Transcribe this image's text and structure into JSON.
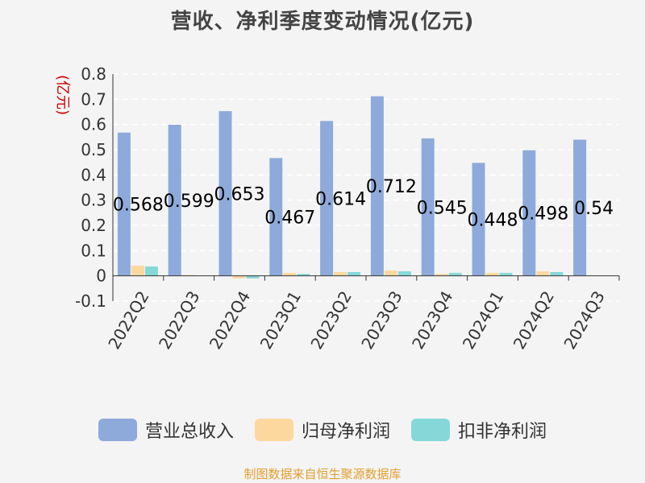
{
  "chart_data": {
    "type": "bar",
    "title": "营收、净利季度变动情况(亿元)",
    "ylabel": "(亿元)",
    "xlabel": "",
    "ylim": [
      -0.1,
      0.8
    ],
    "yticks": [
      "-0.1",
      "0",
      "0.1",
      "0.2",
      "0.3",
      "0.4",
      "0.5",
      "0.6",
      "0.7",
      "0.8"
    ],
    "categories": [
      "2022Q2",
      "2022Q3",
      "2022Q4",
      "2023Q1",
      "2023Q2",
      "2023Q3",
      "2023Q4",
      "2024Q1",
      "2024Q2",
      "2024Q3"
    ],
    "series": [
      {
        "name": "营业总收入",
        "color": "#8eaadb",
        "values": [
          0.568,
          0.599,
          0.653,
          0.467,
          0.614,
          0.712,
          0.545,
          0.448,
          0.498,
          0.54
        ],
        "labels": [
          "0.568",
          "0.599",
          "0.653",
          "0.467",
          "0.614",
          "0.712",
          "0.545",
          "0.448",
          "0.498",
          "0.54"
        ]
      },
      {
        "name": "归母净利润",
        "color": "#fdd89e",
        "values": [
          0.04,
          0.003,
          -0.01,
          0.012,
          0.015,
          0.021,
          0.008,
          0.012,
          0.018,
          0.0
        ]
      },
      {
        "name": "扣非净利润",
        "color": "#86d8d8",
        "values": [
          0.037,
          0.0,
          -0.01,
          0.008,
          0.015,
          0.018,
          0.012,
          0.012,
          0.015,
          0.0
        ]
      }
    ],
    "grid": true,
    "legend_position": "bottom"
  },
  "source": "制图数据来自恒生聚源数据库"
}
